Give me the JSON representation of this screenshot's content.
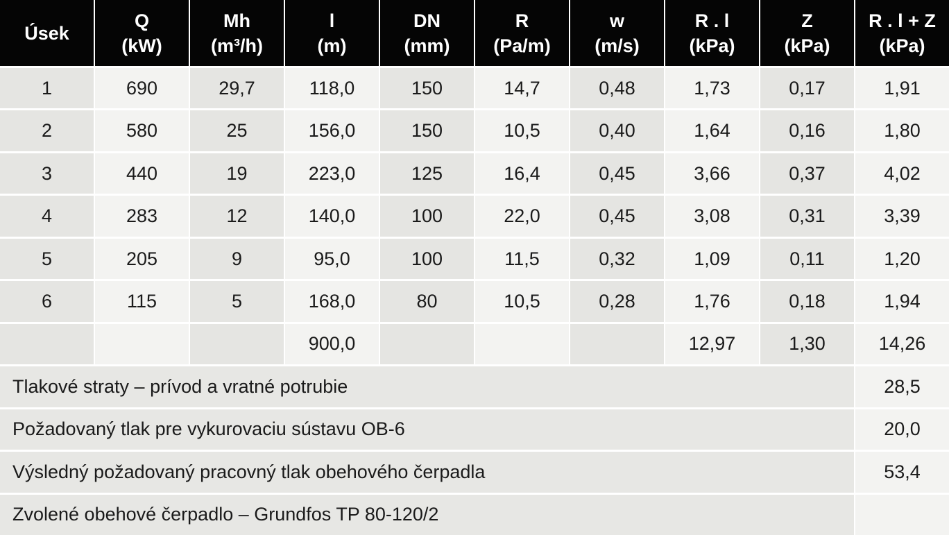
{
  "table": {
    "header": [
      [
        "Úsek"
      ],
      [
        "Q",
        "(kW)"
      ],
      [
        "Mh",
        "(m³/h)"
      ],
      [
        "l",
        "(m)"
      ],
      [
        "DN",
        "(mm)"
      ],
      [
        "R",
        "(Pa/m)"
      ],
      [
        "w",
        "(m/s)"
      ],
      [
        "R . l",
        "(kPa)"
      ],
      [
        "Z",
        "(kPa)"
      ],
      [
        "R . l + Z",
        "(kPa)"
      ]
    ],
    "rows": [
      [
        "1",
        "690",
        "29,7",
        "118,0",
        "150",
        "14,7",
        "0,48",
        "1,73",
        "0,17",
        "1,91"
      ],
      [
        "2",
        "580",
        "25",
        "156,0",
        "150",
        "10,5",
        "0,40",
        "1,64",
        "0,16",
        "1,80"
      ],
      [
        "3",
        "440",
        "19",
        "223,0",
        "125",
        "16,4",
        "0,45",
        "3,66",
        "0,37",
        "4,02"
      ],
      [
        "4",
        "283",
        "12",
        "140,0",
        "100",
        "22,0",
        "0,45",
        "3,08",
        "0,31",
        "3,39"
      ],
      [
        "5",
        "205",
        "9",
        "95,0",
        "100",
        "11,5",
        "0,32",
        "1,09",
        "0,11",
        "1,20"
      ],
      [
        "6",
        "115",
        "5",
        "168,0",
        "80",
        "10,5",
        "0,28",
        "1,76",
        "0,18",
        "1,94"
      ],
      [
        null,
        null,
        null,
        "900,0",
        null,
        null,
        null,
        "12,97",
        "1,30",
        "14,26"
      ]
    ],
    "summary": [
      {
        "label": "Tlakové straty – prívod a vratné potrubie",
        "value": "28,5"
      },
      {
        "label": "Požadovaný tlak pre vykurovaciu sústavu OB-6",
        "value": "20,0"
      },
      {
        "label": "Výsledný požadovaný pracovný tlak obehového čerpadla",
        "value": "53,4"
      },
      {
        "label": "Zvolené obehové čerpadlo – Grundfos TP 80-120/2",
        "value": null
      }
    ]
  }
}
